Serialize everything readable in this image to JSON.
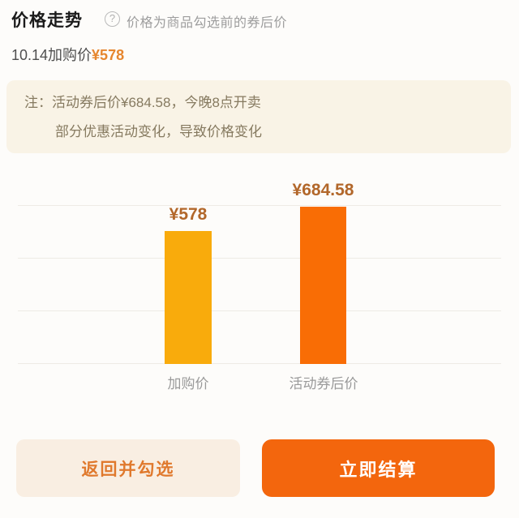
{
  "header": {
    "title": "价格走势",
    "help_icon_glyph": "?",
    "help_text": "价格为商品勾选前的券后价"
  },
  "subtitle": {
    "label": "10.14加购价",
    "price": "¥578"
  },
  "note": {
    "prefix": "注：",
    "line1": "活动券后价¥684.58，今晚8点开卖",
    "line2": "部分优惠活动变化，导致价格变化"
  },
  "chart_data": {
    "type": "bar",
    "title": "价格走势",
    "categories": [
      "加购价",
      "活动券后价"
    ],
    "values": [
      578,
      684.58
    ],
    "value_labels": [
      "¥578",
      "¥684.58"
    ],
    "bar_colors": [
      "#f9ab0c",
      "#f96d05"
    ],
    "value_label_color": "#b2672a",
    "axis_label_color": "#9a9a9a",
    "ylim": [
      0,
      700
    ],
    "grid": true,
    "gridline_count": 4,
    "legend": "none"
  },
  "footer": {
    "back_button": "返回并勾选",
    "checkout_button": "立即结算"
  },
  "colors": {
    "page_bg": "#fdfcfa",
    "accent_orange": "#f3660d",
    "subtitle_price_orange": "#e6862e",
    "note_bg": "#f9f3e6",
    "note_text": "#867a60",
    "back_button_bg": "#f9eee2",
    "back_button_text": "#e0792d",
    "gridline": "#eeebe5"
  }
}
